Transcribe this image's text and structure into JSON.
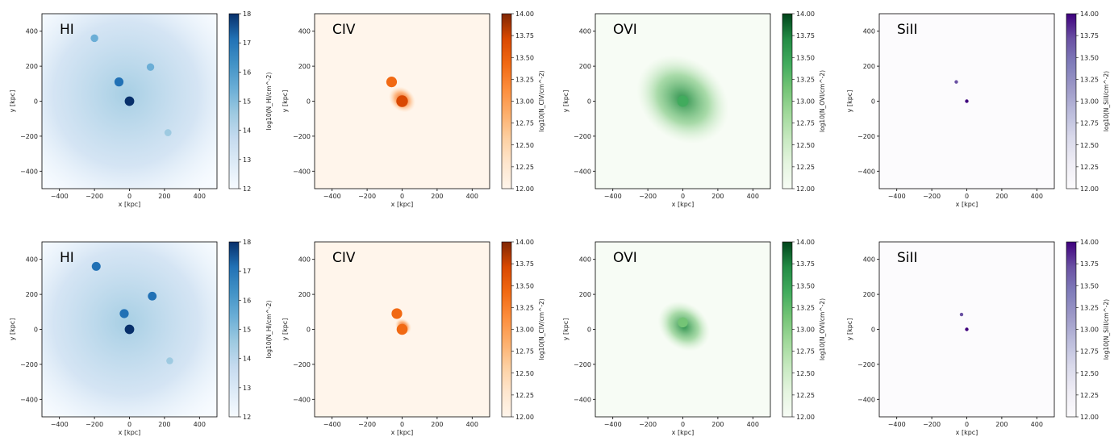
{
  "chart_data": [
    {
      "type": "heatmap",
      "title": "HI",
      "row": 1,
      "xlabel": "x [kpc]",
      "ylabel": "y [kpc]",
      "xlim": [
        -500,
        500
      ],
      "ylim": [
        -500,
        500
      ],
      "xticks": [
        -400,
        -200,
        0,
        200,
        400
      ],
      "yticks": [
        -400,
        -200,
        0,
        200,
        400
      ],
      "colorbar": {
        "label": "log10(N_HI/cm^-2)",
        "lim": [
          12,
          18
        ],
        "ticks": [
          12,
          13,
          14,
          15,
          16,
          17,
          18
        ],
        "tick_labels": [
          "12",
          "13",
          "14",
          "15",
          "16",
          "17",
          "18"
        ],
        "colors": [
          "#f7fbff",
          "#deebf7",
          "#c6dbef",
          "#9ecae1",
          "#6baed6",
          "#4292c6",
          "#2171b5",
          "#08306b"
        ]
      },
      "sources": [
        {
          "x": -60,
          "y": 110,
          "peak": 17.2
        },
        {
          "x": 0,
          "y": 0,
          "peak": 17.8
        },
        {
          "x": -200,
          "y": 360,
          "peak": 15.5
        },
        {
          "x": 120,
          "y": 195,
          "peak": 15.3
        },
        {
          "x": 220,
          "y": -180,
          "peak": 14.8
        }
      ]
    },
    {
      "type": "heatmap",
      "title": "CIV",
      "row": 1,
      "xlabel": "x [kpc]",
      "ylabel": "y [kpc]",
      "xlim": [
        -500,
        500
      ],
      "ylim": [
        -500,
        500
      ],
      "xticks": [
        -400,
        -200,
        0,
        200,
        400
      ],
      "yticks": [
        -400,
        -200,
        0,
        200,
        400
      ],
      "colorbar": {
        "label": "log10(N_CIV/cm^-2)",
        "lim": [
          12,
          14
        ],
        "ticks": [
          12,
          12.25,
          12.5,
          12.75,
          13,
          13.25,
          13.5,
          13.75,
          14
        ],
        "tick_labels": [
          "12.00",
          "12.25",
          "12.50",
          "12.75",
          "13.00",
          "13.25",
          "13.50",
          "13.75",
          "14.00"
        ],
        "colors": [
          "#fff5eb",
          "#fee6ce",
          "#fdd0a2",
          "#fdae6b",
          "#fd8d3c",
          "#f16913",
          "#d94801",
          "#7f2704"
        ]
      },
      "sources": [
        {
          "x": -60,
          "y": 110,
          "peak": 13.3
        },
        {
          "x": 0,
          "y": 0,
          "peak": 13.6
        }
      ]
    },
    {
      "type": "heatmap",
      "title": "OVI",
      "row": 1,
      "xlabel": "x [kpc]",
      "ylabel": "y [kpc]",
      "xlim": [
        -500,
        500
      ],
      "ylim": [
        -500,
        500
      ],
      "xticks": [
        -400,
        -200,
        0,
        200,
        400
      ],
      "yticks": [
        -400,
        -200,
        0,
        200,
        400
      ],
      "colorbar": {
        "label": "log10(N_OVI/cm^-2)",
        "lim": [
          12,
          14
        ],
        "ticks": [
          12,
          12.25,
          12.5,
          12.75,
          13,
          13.25,
          13.5,
          13.75,
          14
        ],
        "tick_labels": [
          "12.00",
          "12.25",
          "12.50",
          "12.75",
          "13.00",
          "13.25",
          "13.50",
          "13.75",
          "14.00"
        ],
        "colors": [
          "#f7fcf5",
          "#e5f5e0",
          "#c7e9c0",
          "#a1d99b",
          "#74c476",
          "#41ab5d",
          "#238b45",
          "#00441b"
        ]
      },
      "sources": [
        {
          "x": 0,
          "y": 0,
          "peak": 13.5
        }
      ]
    },
    {
      "type": "heatmap",
      "title": "SiII",
      "row": 1,
      "xlabel": "x [kpc]",
      "ylabel": "y [kpc]",
      "xlim": [
        -500,
        500
      ],
      "ylim": [
        -500,
        500
      ],
      "xticks": [
        -400,
        -200,
        0,
        200,
        400
      ],
      "yticks": [
        -400,
        -200,
        0,
        200,
        400
      ],
      "colorbar": {
        "label": "log10(N_SiII/cm^-2)",
        "lim": [
          12,
          14
        ],
        "ticks": [
          12,
          12.25,
          12.5,
          12.75,
          13,
          13.25,
          13.5,
          13.75,
          14
        ],
        "tick_labels": [
          "12.00",
          "12.25",
          "12.50",
          "12.75",
          "13.00",
          "13.25",
          "13.50",
          "13.75",
          "14.00"
        ],
        "colors": [
          "#fcfbfd",
          "#efedf5",
          "#dadaeb",
          "#bcbddc",
          "#9e9ac8",
          "#807dba",
          "#6a51a3",
          "#3f007d"
        ]
      },
      "sources": [
        {
          "x": -60,
          "y": 110,
          "peak": 13.8
        },
        {
          "x": 0,
          "y": 0,
          "peak": 14.0
        }
      ]
    },
    {
      "type": "heatmap",
      "title": "HI",
      "row": 2,
      "xlabel": "x [kpc]",
      "ylabel": "y [kpc]",
      "xlim": [
        -500,
        500
      ],
      "ylim": [
        -500,
        500
      ],
      "xticks": [
        -400,
        -200,
        0,
        200,
        400
      ],
      "yticks": [
        -400,
        -200,
        0,
        200,
        400
      ],
      "colorbar": {
        "label": "log10(N_HI/cm^-2)",
        "lim": [
          12,
          18
        ],
        "ticks": [
          12,
          13,
          14,
          15,
          16,
          17,
          18
        ],
        "tick_labels": [
          "12",
          "13",
          "14",
          "15",
          "16",
          "17",
          "18"
        ],
        "colors": [
          "#f7fbff",
          "#deebf7",
          "#c6dbef",
          "#9ecae1",
          "#6baed6",
          "#4292c6",
          "#2171b5",
          "#08306b"
        ]
      },
      "sources": [
        {
          "x": -190,
          "y": 360,
          "peak": 17.0
        },
        {
          "x": -30,
          "y": 90,
          "peak": 17.2
        },
        {
          "x": 0,
          "y": 0,
          "peak": 17.8
        },
        {
          "x": 130,
          "y": 190,
          "peak": 16.8
        },
        {
          "x": 230,
          "y": -180,
          "peak": 14.5
        }
      ]
    },
    {
      "type": "heatmap",
      "title": "CIV",
      "row": 2,
      "xlabel": "x [kpc]",
      "ylabel": "y [kpc]",
      "xlim": [
        -500,
        500
      ],
      "ylim": [
        -500,
        500
      ],
      "xticks": [
        -400,
        -200,
        0,
        200,
        400
      ],
      "yticks": [
        -400,
        -200,
        0,
        200,
        400
      ],
      "colorbar": {
        "label": "log10(N_CIV/cm^-2)",
        "lim": [
          12,
          14
        ],
        "ticks": [
          12,
          12.25,
          12.5,
          12.75,
          13,
          13.25,
          13.5,
          13.75,
          14
        ],
        "tick_labels": [
          "12.00",
          "12.25",
          "12.50",
          "12.75",
          "13.00",
          "13.25",
          "13.50",
          "13.75",
          "14.00"
        ],
        "colors": [
          "#fff5eb",
          "#fee6ce",
          "#fdd0a2",
          "#fdae6b",
          "#fd8d3c",
          "#f16913",
          "#d94801",
          "#7f2704"
        ]
      },
      "sources": [
        {
          "x": -30,
          "y": 90,
          "peak": 13.3
        },
        {
          "x": 0,
          "y": 0,
          "peak": 13.4
        }
      ]
    },
    {
      "type": "heatmap",
      "title": "OVI",
      "row": 2,
      "xlabel": "x [kpc]",
      "ylabel": "y [kpc]",
      "xlim": [
        -500,
        500
      ],
      "ylim": [
        -500,
        500
      ],
      "xticks": [
        -400,
        -200,
        0,
        200,
        400
      ],
      "yticks": [
        -400,
        -200,
        0,
        200,
        400
      ],
      "colorbar": {
        "label": "log10(N_OVI/cm^-2)",
        "lim": [
          12,
          14
        ],
        "ticks": [
          12,
          12.25,
          12.5,
          12.75,
          13,
          13.25,
          13.5,
          13.75,
          14
        ],
        "tick_labels": [
          "12.00",
          "12.25",
          "12.50",
          "12.75",
          "13.00",
          "13.25",
          "13.50",
          "13.75",
          "14.00"
        ],
        "colors": [
          "#f7fcf5",
          "#e5f5e0",
          "#c7e9c0",
          "#a1d99b",
          "#74c476",
          "#41ab5d",
          "#238b45",
          "#00441b"
        ]
      },
      "sources": [
        {
          "x": 0,
          "y": 40,
          "peak": 13.1
        }
      ]
    },
    {
      "type": "heatmap",
      "title": "SiII",
      "row": 2,
      "xlabel": "x [kpc]",
      "ylabel": "y [kpc]",
      "xlim": [
        -500,
        500
      ],
      "ylim": [
        -500,
        500
      ],
      "xticks": [
        -400,
        -200,
        0,
        200,
        400
      ],
      "yticks": [
        -400,
        -200,
        0,
        200,
        400
      ],
      "colorbar": {
        "label": "log10(N_SiII/cm^-2)",
        "lim": [
          12,
          14
        ],
        "ticks": [
          12,
          12.25,
          12.5,
          12.75,
          13,
          13.25,
          13.5,
          13.75,
          14
        ],
        "tick_labels": [
          "12.00",
          "12.25",
          "12.50",
          "12.75",
          "13.00",
          "13.25",
          "13.50",
          "13.75",
          "14.00"
        ],
        "colors": [
          "#fcfbfd",
          "#efedf5",
          "#dadaeb",
          "#bcbddc",
          "#9e9ac8",
          "#807dba",
          "#6a51a3",
          "#3f007d"
        ]
      },
      "sources": [
        {
          "x": -30,
          "y": 85,
          "peak": 13.6
        },
        {
          "x": 0,
          "y": 0,
          "peak": 14.0
        }
      ]
    }
  ]
}
